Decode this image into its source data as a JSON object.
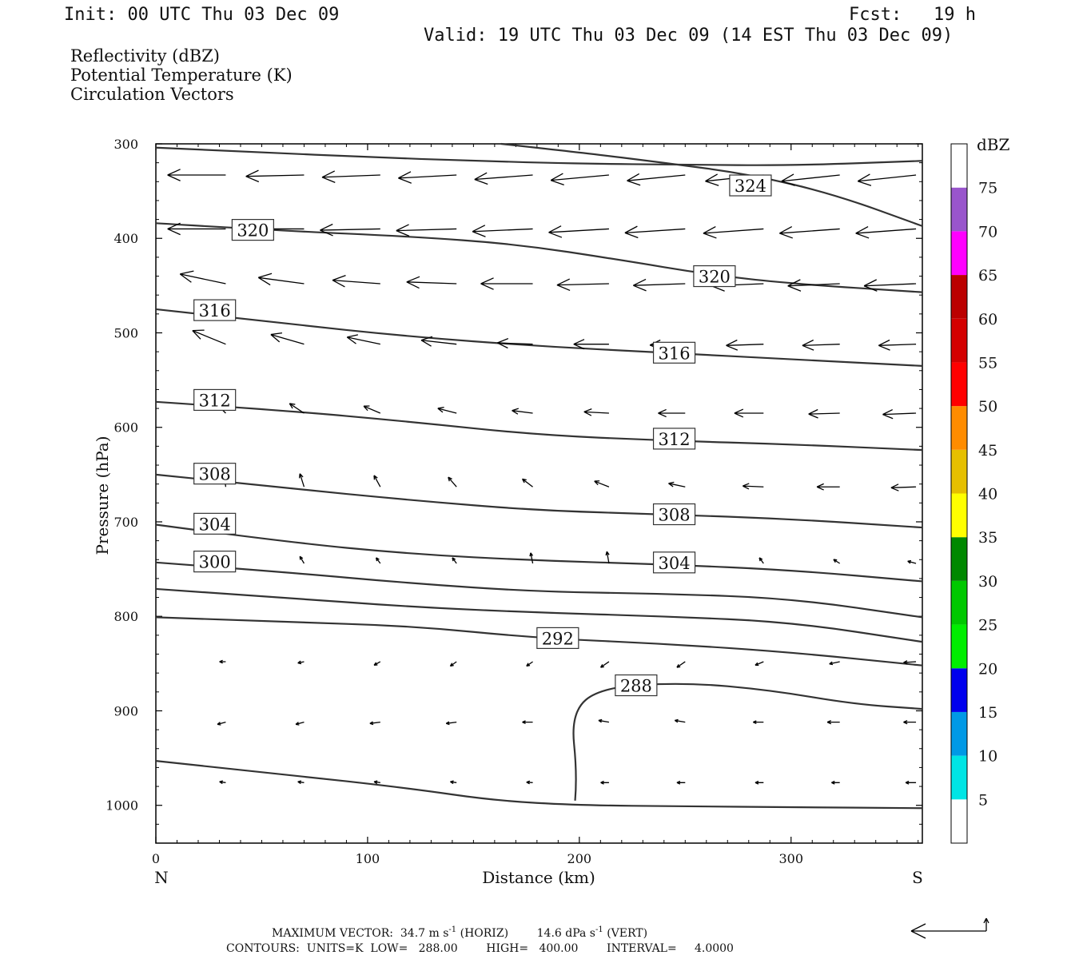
{
  "header": {
    "init": "Init: 00 UTC Thu 03 Dec 09",
    "fcst": "Fcst:   19 h",
    "valid": "Valid: 19 UTC Thu 03 Dec 09 (14 EST Thu 03 Dec 09)",
    "fields": [
      "Reflectivity (dBZ)",
      "Potential Temperature (K)",
      "Circulation Vectors"
    ],
    "field_colors": [
      "#111111",
      "#777777",
      "#111111"
    ]
  },
  "footer": {
    "maxvec_prefix": "MAXIMUM VECTOR:  34.7 m s",
    "maxvec_mid": " (HORIZ)        14.6 dPa s",
    "maxvec_end": " (VERT)",
    "superscript": "-1",
    "contours": "CONTOURS:  UNITS=K  LOW=   288.00        HIGH=   400.00        INTERVAL=     4.0000"
  },
  "colorbar": {
    "unit": "dBZ",
    "levels": [
      5,
      10,
      15,
      20,
      25,
      30,
      35,
      40,
      45,
      50,
      55,
      60,
      65,
      70,
      75
    ],
    "colors": [
      "#ffffff",
      "#00e5e5",
      "#0099e6",
      "#0000ee",
      "#00ee00",
      "#00c800",
      "#008800",
      "#ffff00",
      "#e6bf00",
      "#ff8c00",
      "#ff0000",
      "#d40000",
      "#bb0000",
      "#ff00ff",
      "#9955cc",
      "#ffffff"
    ]
  },
  "chart_data": {
    "type": "line",
    "xlabel": "Distance (km)",
    "ylabel": "Pressure (hPa)",
    "x_ticks": [
      0,
      100,
      200,
      300
    ],
    "y_ticks": [
      300,
      400,
      500,
      600,
      700,
      800,
      900,
      1000
    ],
    "xlim": [
      0,
      362
    ],
    "ylim": [
      300,
      1040
    ],
    "y_inverted": true,
    "x_end_labels": {
      "left": "N",
      "right": "S"
    },
    "theta_contours": [
      {
        "value": 324,
        "label": "324",
        "points": [
          [
            163,
            300
          ],
          [
            200,
            309
          ],
          [
            240,
            320
          ],
          [
            280,
            332
          ],
          [
            320,
            353
          ],
          [
            362,
            387
          ]
        ]
      },
      {
        "value": 320,
        "label": "320",
        "points": [
          [
            0,
            304
          ],
          [
            50,
            309
          ],
          [
            100,
            314
          ],
          [
            150,
            318
          ],
          [
            200,
            321
          ],
          [
            250,
            322
          ],
          [
            300,
            323
          ],
          [
            362,
            318
          ]
        ]
      },
      {
        "value": 320,
        "label": "320",
        "points": [
          [
            0,
            384
          ],
          [
            60,
            392
          ],
          [
            120,
            398
          ],
          [
            170,
            406
          ],
          [
            220,
            423
          ],
          [
            260,
            438
          ],
          [
            300,
            448
          ],
          [
            362,
            457
          ]
        ]
      },
      {
        "value": 316,
        "label": "316",
        "points": [
          [
            0,
            475
          ],
          [
            60,
            490
          ],
          [
            120,
            504
          ],
          [
            180,
            514
          ],
          [
            240,
            521
          ],
          [
            300,
            528
          ],
          [
            362,
            535
          ]
        ]
      },
      {
        "value": 312,
        "label": "312",
        "points": [
          [
            0,
            573
          ],
          [
            60,
            582
          ],
          [
            120,
            594
          ],
          [
            180,
            608
          ],
          [
            240,
            614
          ],
          [
            300,
            618
          ],
          [
            362,
            624
          ]
        ]
      },
      {
        "value": 308,
        "label": "308",
        "points": [
          [
            0,
            650
          ],
          [
            60,
            664
          ],
          [
            120,
            677
          ],
          [
            180,
            688
          ],
          [
            240,
            692
          ],
          [
            300,
            697
          ],
          [
            362,
            706
          ]
        ]
      },
      {
        "value": 304,
        "label": "304",
        "points": [
          [
            0,
            703
          ],
          [
            60,
            721
          ],
          [
            120,
            734
          ],
          [
            180,
            741
          ],
          [
            240,
            745
          ],
          [
            300,
            751
          ],
          [
            362,
            763
          ]
        ]
      },
      {
        "value": 300,
        "label": "300",
        "points": [
          [
            0,
            743
          ],
          [
            60,
            753
          ],
          [
            120,
            765
          ],
          [
            180,
            774
          ],
          [
            240,
            776
          ],
          [
            300,
            781
          ],
          [
            362,
            801
          ]
        ]
      },
      {
        "value": 296,
        "label": "",
        "points": [
          [
            0,
            771
          ],
          [
            60,
            780
          ],
          [
            120,
            790
          ],
          [
            180,
            796
          ],
          [
            240,
            800
          ],
          [
            300,
            806
          ],
          [
            362,
            827
          ]
        ]
      },
      {
        "value": 292,
        "label": "292",
        "points": [
          [
            0,
            801
          ],
          [
            60,
            806
          ],
          [
            120,
            810
          ],
          [
            180,
            823
          ],
          [
            240,
            829
          ],
          [
            300,
            838
          ],
          [
            362,
            852
          ]
        ]
      },
      {
        "value": 288,
        "label": "288",
        "points": [
          [
            198,
            995
          ],
          [
            199,
            968
          ],
          [
            196,
            902
          ],
          [
            210,
            875
          ],
          [
            250,
            870
          ],
          [
            290,
            878
          ],
          [
            330,
            893
          ],
          [
            362,
            898
          ]
        ]
      },
      {
        "value": 292,
        "label": "",
        "points": [
          [
            0,
            953
          ],
          [
            60,
            967
          ],
          [
            120,
            982
          ],
          [
            160,
            995
          ],
          [
            200,
            1000
          ],
          [
            250,
            1001
          ],
          [
            300,
            1002
          ],
          [
            362,
            1003
          ]
        ]
      }
    ],
    "contour_label_positions": [
      [
        271,
        344
      ],
      [
        36,
        391
      ],
      [
        254,
        440
      ],
      [
        18,
        476
      ],
      [
        235,
        521
      ],
      [
        18,
        571
      ],
      [
        235,
        612
      ],
      [
        18,
        649
      ],
      [
        235,
        692
      ],
      [
        18,
        702
      ],
      [
        235,
        743
      ],
      [
        18,
        742
      ],
      [
        180,
        823
      ],
      [
        217,
        873
      ]
    ],
    "vector_columns_km": [
      33,
      70,
      106,
      142,
      178,
      214,
      250,
      287,
      323,
      359
    ],
    "vector_rows": [
      {
        "p": 333,
        "u": [
          -28,
          -28,
          -28,
          -28,
          -28,
          -28,
          -28,
          -28,
          -28,
          -28
        ],
        "w": [
          0,
          0.3,
          0.5,
          0.7,
          1.0,
          1.2,
          1.3,
          1.4,
          1.4,
          1.4
        ]
      },
      {
        "p": 390,
        "u": [
          -28,
          -28,
          -29,
          -29,
          -29,
          -29,
          -29,
          -29,
          -29,
          -29
        ],
        "w": [
          0,
          0,
          0.3,
          0.4,
          0.6,
          0.8,
          0.9,
          1.0,
          1.0,
          1.0
        ]
      },
      {
        "p": 448,
        "u": [
          -22,
          -22,
          -23,
          -24,
          -25,
          -25,
          -25,
          -25,
          -25,
          -25
        ],
        "w": [
          -2.2,
          -1.4,
          -0.8,
          -0.4,
          0,
          0.3,
          0.4,
          0.5,
          0.5,
          0.5
        ]
      },
      {
        "p": 512,
        "u": [
          -16,
          -16,
          -16,
          -17,
          -17,
          -17,
          -17,
          -18,
          -18,
          -18
        ],
        "w": [
          -3.1,
          -2.2,
          -1.6,
          -0.9,
          -0.3,
          0,
          0.2,
          0.3,
          0.3,
          0.3
        ]
      },
      {
        "p": 585,
        "u": [
          -6,
          -7,
          -8,
          -9,
          -10,
          -12,
          -13,
          -14,
          -15,
          -16
        ],
        "w": [
          -2.8,
          -2.2,
          -1.6,
          -1.1,
          -0.6,
          -0.3,
          0,
          0,
          0.2,
          0.3
        ]
      },
      {
        "p": 663,
        "u": [
          -1,
          -2,
          -3,
          -4,
          -5,
          -7,
          -8,
          -10,
          -11,
          -12
        ],
        "w": [
          -3.4,
          -3.0,
          -2.6,
          -2.2,
          -1.8,
          -1.3,
          -0.8,
          -0.2,
          0,
          0.2
        ]
      },
      {
        "p": 744,
        "u": [
          -2,
          -2,
          -2,
          -2,
          -1,
          -1,
          -1,
          -2,
          -3,
          -4
        ],
        "w": [
          -2.7,
          -1.6,
          -1.3,
          -1.3,
          -2.4,
          -2.7,
          -2.3,
          -1.3,
          -0.9,
          -0.5
        ]
      },
      {
        "p": 848,
        "u": [
          -3,
          -3,
          -3,
          -3,
          -3,
          -4,
          -4,
          -4,
          -5,
          -6
        ],
        "w": [
          0,
          0.3,
          0.8,
          1.0,
          1.0,
          1.3,
          1.3,
          0.8,
          0.5,
          0.2
        ]
      },
      {
        "p": 912,
        "u": [
          -4,
          -4,
          -5,
          -5,
          -5,
          -5,
          -5,
          -5,
          -6,
          -6
        ],
        "w": [
          0.5,
          0.5,
          0.3,
          0.3,
          0,
          -0.4,
          -0.4,
          0,
          0,
          0
        ]
      },
      {
        "p": 976,
        "u": [
          -3,
          -3,
          -3,
          -3,
          -3,
          -4,
          -4,
          -4,
          -4,
          -5
        ],
        "w": [
          -0.2,
          -0.2,
          -0.2,
          -0.2,
          -0.1,
          0,
          0,
          0,
          0,
          0
        ]
      }
    ]
  }
}
